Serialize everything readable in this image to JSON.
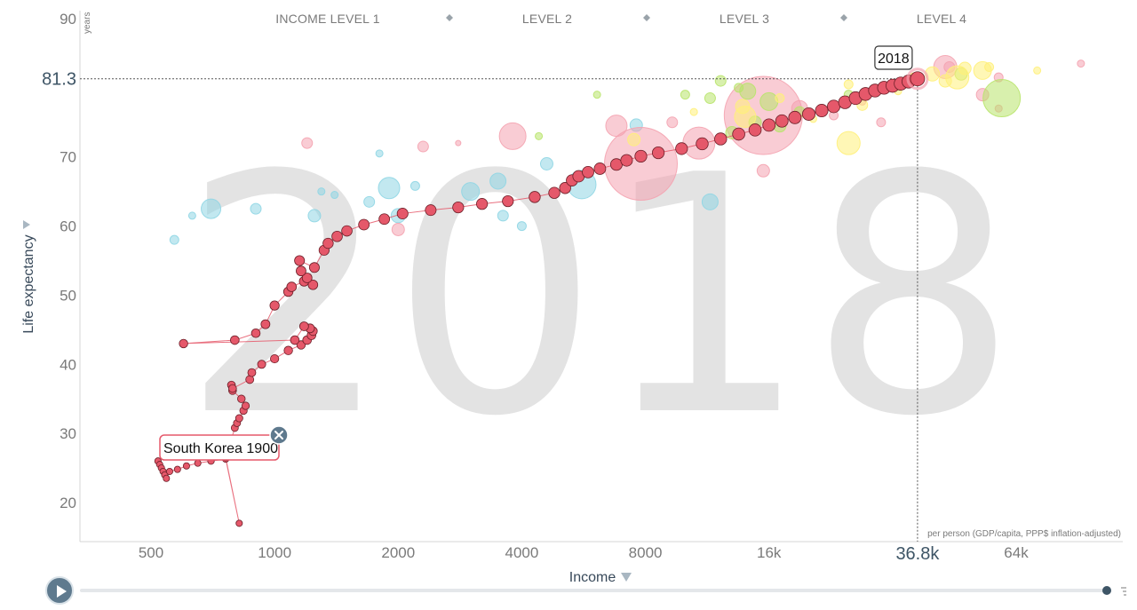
{
  "chart_data": {
    "type": "scatter",
    "xscale": "log",
    "xlim": [
      300,
      120000
    ],
    "ylim": [
      15,
      90
    ],
    "year_watermark": "2018",
    "income_levels": [
      "INCOME LEVEL 1",
      "LEVEL 2",
      "LEVEL 3",
      "LEVEL 4"
    ],
    "xlabel": "Income",
    "xunit": "per person (GDP/capita, PPP$ inflation-adjusted)",
    "ylabel": "Life expectancy",
    "yunit": "years",
    "x_ticks": [
      {
        "value": 500,
        "label": "500"
      },
      {
        "value": 1000,
        "label": "1000"
      },
      {
        "value": 2000,
        "label": "2000"
      },
      {
        "value": 4000,
        "label": "4000"
      },
      {
        "value": 8000,
        "label": "8000"
      },
      {
        "value": 16000,
        "label": "16k"
      },
      {
        "value": 64000,
        "label": "64k"
      }
    ],
    "y_ticks": [
      {
        "value": 20,
        "label": "20"
      },
      {
        "value": 30,
        "label": "30"
      },
      {
        "value": 40,
        "label": "40"
      },
      {
        "value": 50,
        "label": "50"
      },
      {
        "value": 60,
        "label": "60"
      },
      {
        "value": 70,
        "label": "70"
      },
      {
        "value": 90,
        "label": "90"
      }
    ],
    "highlight": {
      "x": 36800,
      "y": 81.3,
      "x_label": "36.8k",
      "y_label": "81.3"
    },
    "trail_labels": {
      "start": "South Korea 1900",
      "end": "2018"
    },
    "colors": {
      "trail": "#e5586a",
      "trail_stroke": "#6b1f28",
      "asia": "#f4a3b0",
      "africa": "#8fd6e4",
      "americas": "#b8e46a",
      "europe": "#fff07a"
    },
    "series": [
      {
        "name": "South Korea",
        "points": [
          [
            520,
            26
          ],
          [
            525,
            25.5
          ],
          [
            530,
            25
          ],
          [
            535,
            24.5
          ],
          [
            540,
            24
          ],
          [
            545,
            23.5
          ],
          [
            555,
            24.5
          ],
          [
            580,
            24.8
          ],
          [
            610,
            25.3
          ],
          [
            650,
            25.7
          ],
          [
            700,
            26
          ],
          [
            760,
            26.3
          ],
          [
            820,
            17
          ],
          [
            760,
            26.5
          ],
          [
            800,
            30.8
          ],
          [
            810,
            31.5
          ],
          [
            820,
            32.2
          ],
          [
            840,
            33.3
          ],
          [
            850,
            34
          ],
          [
            830,
            35
          ],
          [
            790,
            36.2
          ],
          [
            785,
            37
          ],
          [
            790,
            36.5
          ],
          [
            870,
            37.8
          ],
          [
            880,
            38.8
          ],
          [
            930,
            40
          ],
          [
            1000,
            40.8
          ],
          [
            1080,
            42
          ],
          [
            1160,
            42.8
          ],
          [
            1200,
            43.5
          ],
          [
            1230,
            44.2
          ],
          [
            1240,
            44.8
          ],
          [
            1220,
            45.2
          ],
          [
            1180,
            45.5
          ],
          [
            1120,
            43.5
          ],
          [
            600,
            43
          ],
          [
            800,
            43.5
          ],
          [
            900,
            44.5
          ],
          [
            950,
            45.8
          ],
          [
            1000,
            48.5
          ],
          [
            1080,
            50.5
          ],
          [
            1100,
            51.2
          ],
          [
            1180,
            52
          ],
          [
            1240,
            51.5
          ],
          [
            1200,
            52.5
          ],
          [
            1160,
            53.5
          ],
          [
            1150,
            55
          ],
          [
            1250,
            54
          ],
          [
            1320,
            56.5
          ],
          [
            1350,
            57.5
          ],
          [
            1420,
            58.5
          ],
          [
            1500,
            59.3
          ],
          [
            1650,
            60.2
          ],
          [
            1850,
            61
          ],
          [
            2050,
            61.8
          ],
          [
            2400,
            62.3
          ],
          [
            2800,
            62.7
          ],
          [
            3200,
            63.2
          ],
          [
            3700,
            63.6
          ],
          [
            4300,
            64.2
          ],
          [
            4800,
            64.8
          ],
          [
            5100,
            65.5
          ],
          [
            5300,
            66.6
          ],
          [
            5500,
            67.2
          ],
          [
            5800,
            67.8
          ],
          [
            6200,
            68.3
          ],
          [
            6800,
            68.9
          ],
          [
            7200,
            69.5
          ],
          [
            7800,
            70.1
          ],
          [
            8600,
            70.6
          ],
          [
            9800,
            71.2
          ],
          [
            11000,
            71.9
          ],
          [
            12200,
            72.6
          ],
          [
            13500,
            73.3
          ],
          [
            14800,
            73.9
          ],
          [
            16000,
            74.6
          ],
          [
            17200,
            75.2
          ],
          [
            18500,
            75.7
          ],
          [
            20000,
            76.2
          ],
          [
            21500,
            76.7
          ],
          [
            23000,
            77.3
          ],
          [
            24500,
            77.9
          ],
          [
            26000,
            78.5
          ],
          [
            27500,
            79.1
          ],
          [
            29000,
            79.6
          ],
          [
            30500,
            80
          ],
          [
            32000,
            80.3
          ],
          [
            33500,
            80.6
          ],
          [
            35000,
            80.9
          ],
          [
            36800,
            81.3
          ]
        ]
      }
    ],
    "background_bubbles": [
      {
        "x": 570,
        "y": 58,
        "r": 5,
        "region": "africa"
      },
      {
        "x": 700,
        "y": 62.5,
        "r": 11,
        "region": "africa"
      },
      {
        "x": 630,
        "y": 61.5,
        "r": 4,
        "region": "africa"
      },
      {
        "x": 900,
        "y": 62.5,
        "r": 6,
        "region": "africa"
      },
      {
        "x": 1250,
        "y": 61.5,
        "r": 7,
        "region": "africa"
      },
      {
        "x": 1400,
        "y": 64.5,
        "r": 4,
        "region": "africa"
      },
      {
        "x": 1700,
        "y": 63.5,
        "r": 6,
        "region": "africa"
      },
      {
        "x": 1900,
        "y": 65.5,
        "r": 12,
        "region": "africa"
      },
      {
        "x": 2200,
        "y": 65.8,
        "r": 5,
        "region": "africa"
      },
      {
        "x": 3000,
        "y": 65,
        "r": 10,
        "region": "africa"
      },
      {
        "x": 3500,
        "y": 66.5,
        "r": 9,
        "region": "africa"
      },
      {
        "x": 2000,
        "y": 61.5,
        "r": 8,
        "region": "africa"
      },
      {
        "x": 3600,
        "y": 61.5,
        "r": 6,
        "region": "africa"
      },
      {
        "x": 4000,
        "y": 60,
        "r": 5,
        "region": "africa"
      },
      {
        "x": 4600,
        "y": 69,
        "r": 7,
        "region": "africa"
      },
      {
        "x": 5600,
        "y": 66,
        "r": 16,
        "region": "africa"
      },
      {
        "x": 7600,
        "y": 74.6,
        "r": 7,
        "region": "africa"
      },
      {
        "x": 11500,
        "y": 63.5,
        "r": 9,
        "region": "africa"
      },
      {
        "x": 1300,
        "y": 65,
        "r": 4,
        "region": "africa"
      },
      {
        "x": 1800,
        "y": 70.5,
        "r": 4,
        "region": "africa"
      },
      {
        "x": 2000,
        "y": 59.5,
        "r": 7,
        "region": "asia"
      },
      {
        "x": 2300,
        "y": 71.5,
        "r": 6,
        "region": "asia"
      },
      {
        "x": 3800,
        "y": 73,
        "r": 15,
        "region": "asia"
      },
      {
        "x": 6800,
        "y": 74.5,
        "r": 12,
        "region": "asia"
      },
      {
        "x": 7800,
        "y": 69,
        "r": 41,
        "region": "asia"
      },
      {
        "x": 15500,
        "y": 76,
        "r": 44,
        "region": "asia"
      },
      {
        "x": 10800,
        "y": 72,
        "r": 18,
        "region": "asia"
      },
      {
        "x": 15500,
        "y": 68,
        "r": 7,
        "region": "asia"
      },
      {
        "x": 9300,
        "y": 75,
        "r": 6,
        "region": "asia"
      },
      {
        "x": 2800,
        "y": 72,
        "r": 3,
        "region": "asia"
      },
      {
        "x": 19000,
        "y": 77,
        "r": 9,
        "region": "asia"
      },
      {
        "x": 43000,
        "y": 83,
        "r": 13,
        "region": "asia"
      },
      {
        "x": 53000,
        "y": 79,
        "r": 7,
        "region": "asia"
      },
      {
        "x": 58000,
        "y": 81.5,
        "r": 5,
        "region": "asia"
      },
      {
        "x": 92000,
        "y": 83.5,
        "r": 4,
        "region": "asia"
      },
      {
        "x": 58000,
        "y": 77,
        "r": 4,
        "region": "asia"
      },
      {
        "x": 44000,
        "y": 83,
        "r": 6,
        "region": "asia"
      },
      {
        "x": 1200,
        "y": 72,
        "r": 6,
        "region": "asia"
      },
      {
        "x": 23000,
        "y": 76,
        "r": 5,
        "region": "asia"
      },
      {
        "x": 29000,
        "y": 79.5,
        "r": 5,
        "region": "asia"
      },
      {
        "x": 27000,
        "y": 78,
        "r": 4,
        "region": "asia"
      },
      {
        "x": 30000,
        "y": 75,
        "r": 5,
        "region": "asia"
      },
      {
        "x": 6100,
        "y": 79,
        "r": 4,
        "region": "americas"
      },
      {
        "x": 13500,
        "y": 80,
        "r": 5,
        "region": "americas"
      },
      {
        "x": 16000,
        "y": 78,
        "r": 10,
        "region": "americas"
      },
      {
        "x": 14200,
        "y": 79.5,
        "r": 9,
        "region": "americas"
      },
      {
        "x": 11500,
        "y": 78.5,
        "r": 6,
        "region": "americas"
      },
      {
        "x": 17000,
        "y": 74.5,
        "r": 7,
        "region": "americas"
      },
      {
        "x": 14800,
        "y": 75,
        "r": 7,
        "region": "americas"
      },
      {
        "x": 13000,
        "y": 73.5,
        "r": 7,
        "region": "americas"
      },
      {
        "x": 25000,
        "y": 79,
        "r": 5,
        "region": "americas"
      },
      {
        "x": 59000,
        "y": 78.5,
        "r": 21,
        "region": "americas"
      },
      {
        "x": 47000,
        "y": 82,
        "r": 7,
        "region": "americas"
      },
      {
        "x": 19000,
        "y": 76.5,
        "r": 6,
        "region": "americas"
      },
      {
        "x": 4400,
        "y": 73,
        "r": 4,
        "region": "americas"
      },
      {
        "x": 10000,
        "y": 79,
        "r": 5,
        "region": "americas"
      },
      {
        "x": 12200,
        "y": 81,
        "r": 6,
        "region": "americas"
      },
      {
        "x": 14000,
        "y": 75.8,
        "r": 12,
        "region": "europe"
      },
      {
        "x": 13800,
        "y": 77.3,
        "r": 8,
        "region": "europe"
      },
      {
        "x": 17000,
        "y": 78.5,
        "r": 5,
        "region": "europe"
      },
      {
        "x": 20500,
        "y": 75.5,
        "r": 4,
        "region": "europe"
      },
      {
        "x": 25000,
        "y": 72,
        "r": 13,
        "region": "europe"
      },
      {
        "x": 27000,
        "y": 77.5,
        "r": 6,
        "region": "europe"
      },
      {
        "x": 33000,
        "y": 79.5,
        "r": 4,
        "region": "europe"
      },
      {
        "x": 40000,
        "y": 82,
        "r": 8,
        "region": "europe"
      },
      {
        "x": 46000,
        "y": 81.5,
        "r": 13,
        "region": "europe"
      },
      {
        "x": 53000,
        "y": 82.5,
        "r": 10,
        "region": "europe"
      },
      {
        "x": 48000,
        "y": 82.8,
        "r": 7,
        "region": "europe"
      },
      {
        "x": 43000,
        "y": 81,
        "r": 7,
        "region": "europe"
      },
      {
        "x": 36000,
        "y": 81.5,
        "r": 5,
        "region": "europe"
      },
      {
        "x": 55000,
        "y": 83,
        "r": 5,
        "region": "europe"
      },
      {
        "x": 7500,
        "y": 72.5,
        "r": 7,
        "region": "europe"
      },
      {
        "x": 10500,
        "y": 76.5,
        "r": 4,
        "region": "europe"
      },
      {
        "x": 72000,
        "y": 82.5,
        "r": 4,
        "region": "europe"
      },
      {
        "x": 25000,
        "y": 80.5,
        "r": 5,
        "region": "europe"
      }
    ]
  }
}
